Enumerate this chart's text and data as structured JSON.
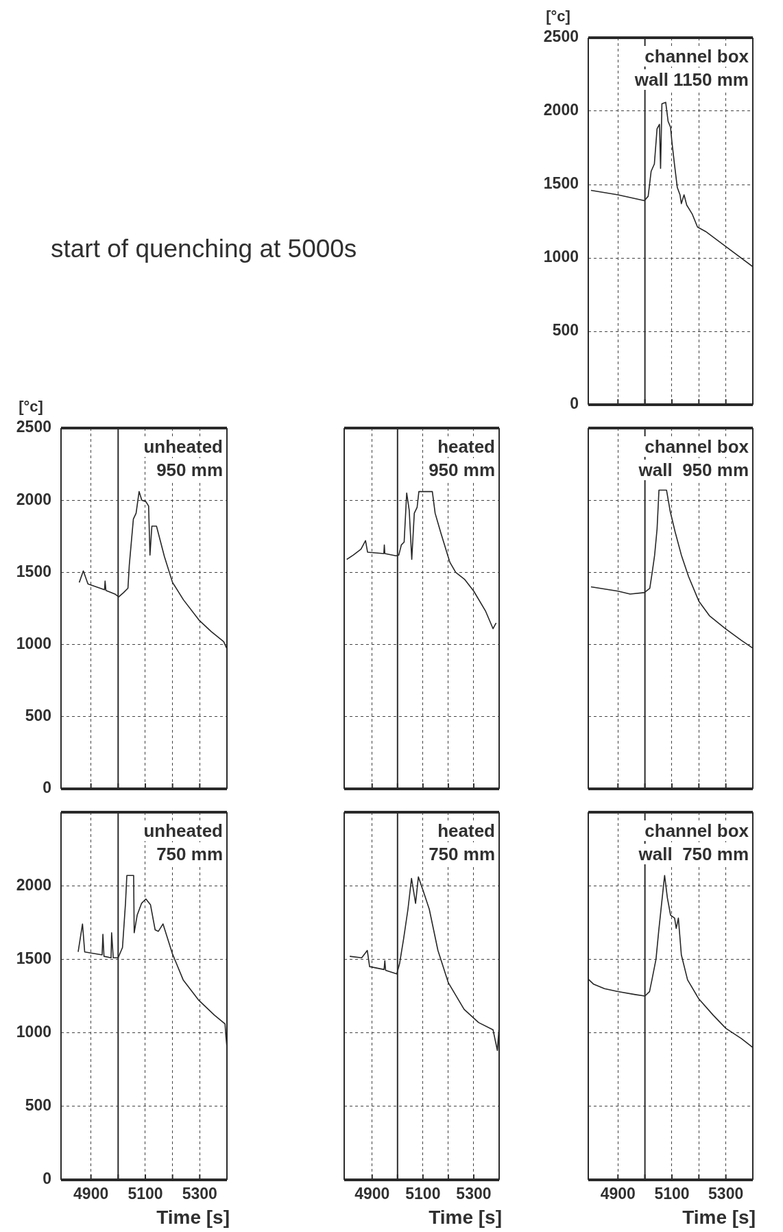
{
  "chart_data": [
    {
      "type": "line",
      "title": "channel box\nwall 1150 mm",
      "ylabel": "[°c]",
      "xlim": [
        4790,
        5400
      ],
      "ylim": [
        0,
        2500
      ],
      "xticks": [
        4900,
        5100,
        5300
      ],
      "yticks": [
        0,
        500,
        1000,
        1500,
        2000,
        2500
      ],
      "tick_labels": "y",
      "grid": true,
      "marker": "none",
      "ref_lines": [
        {
          "axis": "x",
          "value": 5000
        }
      ],
      "series": [
        {
          "color": "#262626",
          "x": [
            4800,
            4900,
            4998,
            5012,
            5023,
            5035,
            5045,
            5054,
            5058,
            5063,
            5077,
            5086,
            5095,
            5100,
            5110,
            5120,
            5130,
            5135,
            5145,
            5155,
            5165,
            5175,
            5195,
            5225,
            5298,
            5400
          ],
          "values": [
            1460,
            1430,
            1390,
            1420,
            1590,
            1640,
            1880,
            1910,
            1610,
            2050,
            2060,
            1930,
            1890,
            1790,
            1630,
            1480,
            1430,
            1370,
            1430,
            1360,
            1330,
            1300,
            1210,
            1180,
            1080,
            940
          ]
        }
      ]
    },
    {
      "type": "line",
      "title": "unheated\n950 mm",
      "ylabel": "[°c]",
      "annotations": [
        "start of quenching at 5000s"
      ],
      "xlim": [
        4790,
        5400
      ],
      "ylim": [
        0,
        2500
      ],
      "xticks": [
        4900,
        5100,
        5300
      ],
      "yticks": [
        0,
        500,
        1000,
        1500,
        2000,
        2500
      ],
      "tick_labels": "y",
      "grid": true,
      "marker": "none",
      "ref_lines": [
        {
          "axis": "x",
          "value": 5000
        }
      ],
      "series": [
        {
          "color": "#262626",
          "x": [
            4857,
            4872,
            4889,
            4950,
            4952,
            4955,
            4988,
            5002,
            5020,
            5036,
            5041,
            5056,
            5066,
            5077,
            5087,
            5102,
            5112,
            5117,
            5124,
            5141,
            5170,
            5200,
            5240,
            5297,
            5342,
            5388,
            5400
          ],
          "values": [
            1430,
            1510,
            1420,
            1380,
            1440,
            1375,
            1350,
            1330,
            1360,
            1390,
            1550,
            1870,
            1910,
            2060,
            2000,
            1990,
            1960,
            1620,
            1820,
            1820,
            1610,
            1430,
            1310,
            1170,
            1090,
            1020,
            970
          ]
        }
      ]
    },
    {
      "type": "line",
      "title": "heated\n950 mm",
      "xlim": [
        4790,
        5400
      ],
      "ylim": [
        0,
        2500
      ],
      "xticks": [
        4900,
        5100,
        5300
      ],
      "yticks": [
        0,
        500,
        1000,
        1500,
        2000,
        2500
      ],
      "tick_labels": false,
      "grid": true,
      "marker": "none",
      "ref_lines": [
        {
          "axis": "x",
          "value": 5000
        }
      ],
      "series": [
        {
          "color": "#262626",
          "x": [
            4800,
            4826,
            4856,
            4874,
            4882,
            4946,
            4948,
            4950,
            4994,
            5005,
            5015,
            5026,
            5036,
            5046,
            5056,
            5066,
            5077,
            5084,
            5137,
            5148,
            5171,
            5206,
            5229,
            5265,
            5300,
            5347,
            5376,
            5388
          ],
          "values": [
            1590,
            1620,
            1660,
            1720,
            1640,
            1630,
            1690,
            1630,
            1615,
            1620,
            1690,
            1710,
            2050,
            1930,
            1590,
            1910,
            1950,
            2060,
            2060,
            1910,
            1770,
            1570,
            1500,
            1450,
            1370,
            1230,
            1110,
            1150
          ]
        }
      ]
    },
    {
      "type": "line",
      "title": "channel box\nwall  950 mm",
      "xlim": [
        4790,
        5400
      ],
      "ylim": [
        0,
        2500
      ],
      "xticks": [
        4900,
        5100,
        5300
      ],
      "yticks": [
        0,
        500,
        1000,
        1500,
        2000,
        2500
      ],
      "tick_labels": false,
      "grid": true,
      "marker": "none",
      "ref_lines": [
        {
          "axis": "x",
          "value": 5000
        }
      ],
      "series": [
        {
          "color": "#262626",
          "x": [
            4800,
            4900,
            4945,
            4998,
            5018,
            5027,
            5036,
            5045,
            5052,
            5080,
            5094,
            5112,
            5135,
            5162,
            5200,
            5239,
            5298,
            5357,
            5400
          ],
          "values": [
            1400,
            1370,
            1350,
            1360,
            1390,
            1500,
            1620,
            1800,
            2070,
            2070,
            1920,
            1780,
            1620,
            1470,
            1300,
            1200,
            1110,
            1030,
            975
          ]
        }
      ]
    },
    {
      "type": "line",
      "title": "unheated\n750 mm",
      "xlabel": "Time [s]",
      "xlim": [
        4790,
        5400
      ],
      "ylim": [
        0,
        2500
      ],
      "xticks": [
        4900,
        5100,
        5300
      ],
      "yticks": [
        0,
        500,
        1000,
        1500,
        2000
      ],
      "grid": true,
      "marker": "none",
      "ref_lines": [
        {
          "axis": "x",
          "value": 5000
        }
      ],
      "series": [
        {
          "color": "#262626",
          "x": [
            4853,
            4869,
            4877,
            4941,
            4944,
            4948,
            4974,
            4976,
            4982,
            5000,
            5016,
            5027,
            5032,
            5057,
            5059,
            5070,
            5086,
            5102,
            5119,
            5136,
            5148,
            5165,
            5199,
            5239,
            5297,
            5354,
            5393,
            5396,
            5400
          ],
          "values": [
            1550,
            1740,
            1550,
            1530,
            1670,
            1520,
            1510,
            1680,
            1510,
            1510,
            1580,
            1880,
            2070,
            2070,
            1680,
            1800,
            1880,
            1910,
            1870,
            1700,
            1690,
            1740,
            1540,
            1360,
            1220,
            1120,
            1060,
            980,
            900
          ]
        }
      ]
    },
    {
      "type": "line",
      "title": "heated\n750 mm",
      "xlabel": "Time [s]",
      "xlim": [
        4790,
        5400
      ],
      "ylim": [
        0,
        2500
      ],
      "xticks": [
        4900,
        5100,
        5300
      ],
      "yticks": [
        0,
        500,
        1000,
        1500,
        2000
      ],
      "tick_labels": "x",
      "grid": true,
      "marker": "none",
      "ref_lines": [
        {
          "axis": "x",
          "value": 5000
        }
      ],
      "series": [
        {
          "color": "#262626",
          "x": [
            4812,
            4859,
            4881,
            4890,
            4947,
            4950,
            4953,
            4997,
            5008,
            5024,
            5041,
            5055,
            5071,
            5082,
            5102,
            5125,
            5159,
            5200,
            5262,
            5319,
            5376,
            5393,
            5399
          ],
          "values": [
            1520,
            1510,
            1560,
            1450,
            1430,
            1490,
            1425,
            1400,
            1470,
            1640,
            1840,
            2050,
            1880,
            2060,
            1960,
            1840,
            1560,
            1340,
            1160,
            1070,
            1020,
            880,
            1020
          ]
        }
      ]
    },
    {
      "type": "line",
      "title": "channel box\nwall  750 mm",
      "xlabel": "Time [s]",
      "xlim": [
        4790,
        5400
      ],
      "ylim": [
        0,
        2500
      ],
      "xticks": [
        4900,
        5100,
        5300
      ],
      "yticks": [
        0,
        500,
        1000,
        1500,
        2000
      ],
      "tick_labels": "x",
      "grid": true,
      "marker": "none",
      "ref_lines": [
        {
          "axis": "x",
          "value": 5000
        }
      ],
      "series": [
        {
          "color": "#262626",
          "x": [
            4790,
            4810,
            4850,
            4900,
            4964,
            5000,
            5017,
            5026,
            5041,
            5051,
            5066,
            5073,
            5083,
            5095,
            5110,
            5116,
            5124,
            5135,
            5158,
            5200,
            5253,
            5300,
            5358,
            5400
          ],
          "values": [
            1365,
            1330,
            1300,
            1280,
            1260,
            1250,
            1280,
            1360,
            1500,
            1690,
            1950,
            2070,
            1920,
            1800,
            1780,
            1710,
            1780,
            1530,
            1360,
            1230,
            1120,
            1030,
            960,
            900
          ]
        }
      ]
    }
  ]
}
